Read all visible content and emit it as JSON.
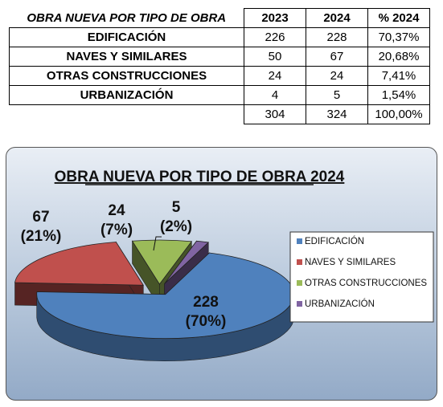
{
  "table": {
    "title": "OBRA NUEVA POR TIPO DE OBRA",
    "headers": [
      "2023",
      "2024",
      "% 2024"
    ],
    "rows": [
      {
        "label": "EDIFICACIÓN",
        "v2023": "226",
        "v2024": "228",
        "pct": "70,37%"
      },
      {
        "label": "NAVES Y SIMILARES",
        "v2023": "50",
        "v2024": "67",
        "pct": "20,68%"
      },
      {
        "label": "OTRAS CONSTRUCCIONES",
        "v2023": "24",
        "v2024": "24",
        "pct": "7,41%"
      },
      {
        "label": "URBANIZACIÓN",
        "v2023": "4",
        "v2024": "5",
        "pct": "1,54%"
      }
    ],
    "totals": {
      "v2023": "304",
      "v2024": "324",
      "pct": "100,00%"
    }
  },
  "chart_data": {
    "type": "pie",
    "title": "OBRA NUEVA POR TIPO DE OBRA 2024",
    "categories": [
      "EDIFICACIÓN",
      "NAVES Y SIMILARES",
      "OTRAS CONSTRUCCIONES",
      "URBANIZACIÓN"
    ],
    "values": [
      228,
      67,
      24,
      5
    ],
    "data_labels": [
      {
        "value": "228",
        "percent": "(70%)"
      },
      {
        "value": "67",
        "percent": "(21%)"
      },
      {
        "value": "24",
        "percent": "(7%)"
      },
      {
        "value": "5",
        "percent": "(2%)"
      }
    ],
    "legend_position": "right",
    "style": "3d-exploded",
    "colors": [
      "#4f81bd",
      "#c0504d",
      "#9bbb59",
      "#8064a2"
    ]
  }
}
